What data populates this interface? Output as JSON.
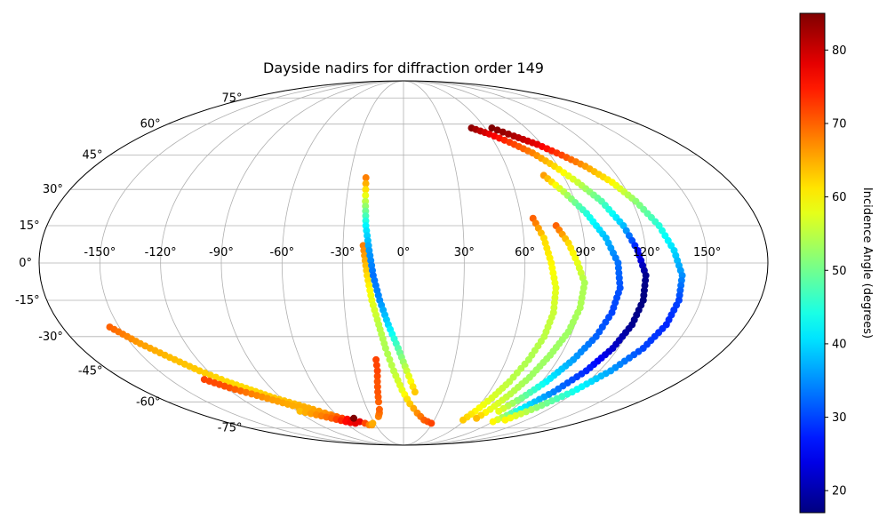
{
  "chart_data": {
    "type": "scatter",
    "projection": "mollweide",
    "title": "Dayside nadirs for diffraction order 149",
    "grid": true,
    "lon_ticks": [
      -150,
      -120,
      -90,
      -60,
      -30,
      0,
      30,
      60,
      90,
      120,
      150
    ],
    "lon_labels": [
      "-150°",
      "-120°",
      "-90°",
      "-60°",
      "-30°",
      "0°",
      "30°",
      "60°",
      "90°",
      "120°",
      "150°"
    ],
    "lat_ticks": [
      75,
      60,
      45,
      30,
      15,
      0,
      -15,
      -30,
      -45,
      -60,
      -75
    ],
    "lat_labels": [
      "75°",
      "60°",
      "45°",
      "30°",
      "15°",
      "0°",
      "-15°",
      "-30°",
      "-45°",
      "-60°",
      "-75°"
    ],
    "colorbar": {
      "label": "Incidence Angle (degrees)",
      "cmap": "jet",
      "range": [
        17,
        85
      ],
      "ticks": [
        20,
        30,
        40,
        50,
        60,
        70,
        80
      ],
      "tick_labels": [
        "20",
        "30",
        "40",
        "50",
        "60",
        "70",
        "80"
      ],
      "placement": "right"
    },
    "series": [
      {
        "lon": [
          -155,
          -145,
          -135,
          -125,
          -115,
          -105,
          -95,
          -85,
          -75,
          -65,
          -58
        ],
        "lat": [
          -26,
          -33,
          -39,
          -45,
          -50,
          -54,
          -58,
          -61,
          -64,
          -67,
          -69
        ],
        "inc": [
          70,
          66,
          64,
          63,
          62,
          62,
          63,
          64,
          65,
          67,
          70
        ]
      },
      {
        "lon": [
          -128,
          -118,
          -108,
          -98,
          -88,
          -78,
          -68,
          -58,
          -50
        ],
        "lat": [
          -49,
          -53,
          -56,
          -59,
          -62,
          -64,
          -67,
          -69,
          -70
        ],
        "inc": [
          72,
          71,
          68,
          66,
          65,
          65,
          67,
          72,
          80
        ]
      },
      {
        "lon": [
          -88,
          -78,
          -68,
          -58,
          -50
        ],
        "lat": [
          -65,
          -67,
          -69,
          -71,
          -72
        ],
        "inc": [
          64,
          67,
          70,
          76,
          78
        ]
      },
      {
        "lon": [
          -47,
          -44,
          -40,
          -37,
          -34,
          -32
        ],
        "lat": [
          -69,
          -71,
          -72,
          -73,
          -73,
          -72
        ],
        "inc": [
          85,
          78,
          72,
          68,
          66,
          65
        ]
      },
      {
        "lon": [
          -23,
          -22,
          -21,
          -20,
          -19,
          -18,
          -17,
          -16,
          -16
        ],
        "lat": [
          -68,
          -67,
          -66,
          -64,
          -60,
          -55,
          -50,
          -45,
          -40
        ],
        "inc": [
          68,
          68,
          69,
          70,
          70,
          71,
          71,
          72,
          72
        ]
      },
      {
        "lon": [
          -20,
          -18,
          -16,
          -13,
          -10,
          -6,
          -1,
          5,
          12,
          20,
          29
        ],
        "lat": [
          7,
          -5,
          -15,
          -25,
          -35,
          -45,
          -54,
          -61,
          -66,
          -70,
          -72
        ],
        "inc": [
          68,
          62,
          58,
          55,
          54,
          55,
          58,
          63,
          67,
          70,
          72
        ]
      },
      {
        "lon": [
          -21,
          -20,
          -19,
          -17,
          -15,
          -12,
          -8,
          -3,
          2,
          8
        ],
        "lat": [
          35,
          25,
          15,
          5,
          -5,
          -15,
          -25,
          -35,
          -45,
          -55
        ],
        "inc": [
          68,
          55,
          42,
          36,
          33,
          35,
          40,
          48,
          56,
          63
        ]
      },
      {
        "lon": [
          66,
          70,
          73,
          76,
          77,
          76,
          73,
          69,
          65,
          61,
          58
        ],
        "lat": [
          18,
          10,
          0,
          -10,
          -20,
          -30,
          -40,
          -50,
          -58,
          -65,
          -70
        ],
        "inc": [
          70,
          62,
          60,
          58,
          56,
          55,
          54,
          55,
          57,
          60,
          63
        ]
      },
      {
        "lon": [
          77,
          82,
          86,
          90,
          90,
          88,
          84,
          80,
          76,
          72,
          69
        ],
        "lat": [
          15,
          8,
          0,
          -8,
          -18,
          -28,
          -38,
          -48,
          -56,
          -64,
          -69
        ],
        "inc": [
          70,
          62,
          58,
          54,
          54,
          53,
          53,
          53,
          55,
          58,
          64
        ]
      },
      {
        "lon": [
          79,
          86,
          94,
          101,
          106,
          108,
          107,
          104,
          99,
          93,
          87,
          81
        ],
        "lat": [
          36,
          29,
          20,
          10,
          0,
          -10,
          -20,
          -30,
          -40,
          -50,
          -58,
          -65
        ],
        "inc": [
          66,
          55,
          45,
          38,
          33,
          31,
          30,
          32,
          36,
          42,
          50,
          58
        ]
      },
      {
        "lon": [
          50,
          60,
          70,
          80,
          88,
          96,
          104,
          111,
          116,
          120,
          121,
          120,
          117,
          112,
          105,
          97,
          90
        ],
        "lat": [
          58,
          55,
          51,
          46,
          40,
          33,
          25,
          15,
          5,
          -5,
          -15,
          -25,
          -35,
          -45,
          -55,
          -64,
          -71
        ],
        "inc": [
          84,
          78,
          73,
          68,
          62,
          56,
          48,
          38,
          26,
          18,
          17,
          18,
          22,
          28,
          34,
          42,
          60
        ]
      },
      {
        "lon": [
          65,
          76,
          87,
          97,
          106,
          115,
          122,
          129,
          134,
          138,
          139,
          138,
          134,
          127,
          118,
          108,
          99
        ],
        "lat": [
          58,
          54,
          50,
          45,
          40,
          33,
          25,
          15,
          5,
          -5,
          -15,
          -25,
          -35,
          -45,
          -55,
          -63,
          -70
        ],
        "inc": [
          85,
          82,
          78,
          72,
          66,
          60,
          52,
          45,
          40,
          35,
          30,
          28,
          30,
          36,
          44,
          52,
          60
        ]
      }
    ]
  }
}
